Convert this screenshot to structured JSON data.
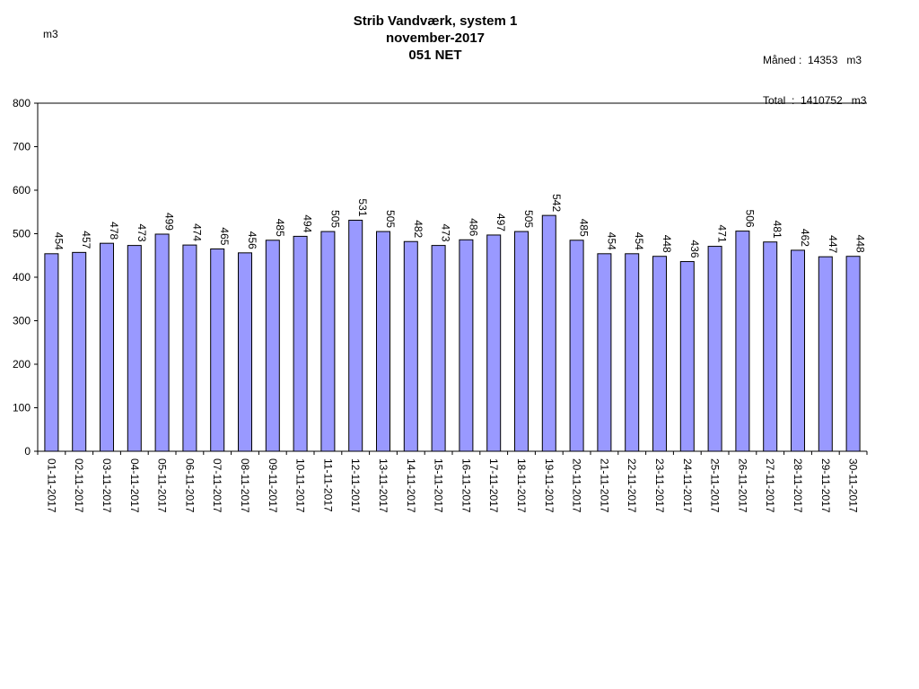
{
  "chart_data": {
    "type": "bar",
    "title": "Strib Vandværk, system 1",
    "subtitle": "november-2017",
    "subtitle2": "051 NET",
    "ylabel": "m3",
    "ylim": [
      0,
      800
    ],
    "yticks": [
      0,
      100,
      200,
      300,
      400,
      500,
      600,
      700,
      800
    ],
    "grid": false,
    "bar_color": "#9999ff",
    "categories": [
      "01-11-2017",
      "02-11-2017",
      "03-11-2017",
      "04-11-2017",
      "05-11-2017",
      "06-11-2017",
      "07-11-2017",
      "08-11-2017",
      "09-11-2017",
      "10-11-2017",
      "11-11-2017",
      "12-11-2017",
      "13-11-2017",
      "14-11-2017",
      "15-11-2017",
      "16-11-2017",
      "17-11-2017",
      "18-11-2017",
      "19-11-2017",
      "20-11-2017",
      "21-11-2017",
      "22-11-2017",
      "23-11-2017",
      "24-11-2017",
      "25-11-2017",
      "26-11-2017",
      "27-11-2017",
      "28-11-2017",
      "29-11-2017",
      "30-11-2017"
    ],
    "values": [
      454,
      457,
      478,
      473,
      499,
      474,
      465,
      456,
      485,
      494,
      505,
      531,
      505,
      482,
      473,
      486,
      497,
      505,
      542,
      485,
      454,
      454,
      448,
      436,
      471,
      506,
      481,
      462,
      447,
      448
    ]
  },
  "summary": {
    "month_line": "Måned :  14353   m3",
    "total_line": "Total  :  1410752   m3"
  }
}
